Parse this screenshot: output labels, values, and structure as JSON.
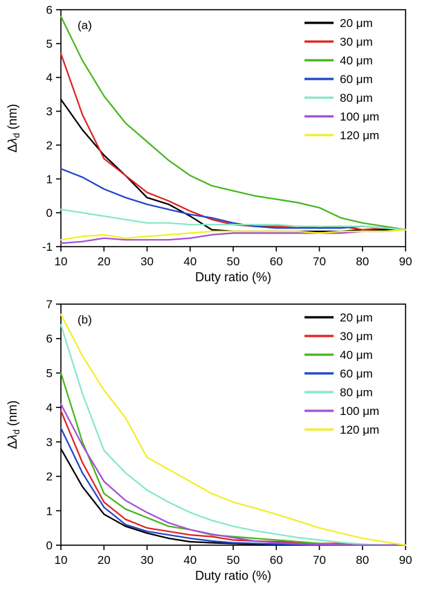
{
  "chart_data": [
    {
      "type": "line",
      "panel_label": "(a)",
      "xlabel": "Duty ratio (%)",
      "ylabel_prefix": "Δ",
      "ylabel_symbol": "λ",
      "ylabel_sub": "d",
      "ylabel_suffix": " (nm)",
      "xlim": [
        10,
        90
      ],
      "ylim": [
        -1,
        6
      ],
      "xticks": [
        10,
        20,
        30,
        40,
        50,
        60,
        70,
        80,
        90
      ],
      "yticks": [
        -1,
        0,
        1,
        2,
        3,
        4,
        5,
        6
      ],
      "grid": false,
      "legend_position": "top-right",
      "x": [
        10,
        15,
        20,
        25,
        30,
        35,
        40,
        45,
        50,
        55,
        60,
        65,
        70,
        75,
        80,
        85,
        90
      ],
      "series": [
        {
          "name": "20 μm",
          "color": "#000000",
          "values": [
            3.35,
            2.45,
            1.7,
            1.1,
            0.45,
            0.25,
            -0.1,
            -0.5,
            -0.55,
            -0.55,
            -0.55,
            -0.55,
            -0.55,
            -0.55,
            -0.5,
            -0.5,
            -0.5
          ]
        },
        {
          "name": "30 μm",
          "color": "#e02222",
          "values": [
            4.7,
            2.9,
            1.6,
            1.1,
            0.6,
            0.35,
            0.05,
            -0.2,
            -0.35,
            -0.4,
            -0.4,
            -0.4,
            -0.45,
            -0.4,
            -0.5,
            -0.45,
            -0.5
          ]
        },
        {
          "name": "40 μm",
          "color": "#46b61e",
          "values": [
            5.8,
            4.5,
            3.45,
            2.65,
            2.1,
            1.55,
            1.1,
            0.8,
            0.65,
            0.5,
            0.4,
            0.3,
            0.15,
            -0.15,
            -0.3,
            -0.4,
            -0.5
          ]
        },
        {
          "name": "60 μm",
          "color": "#1f45c8",
          "values": [
            1.3,
            1.05,
            0.7,
            0.45,
            0.25,
            0.1,
            -0.05,
            -0.15,
            -0.3,
            -0.4,
            -0.45,
            -0.45,
            -0.45,
            -0.45,
            -0.4,
            -0.45,
            -0.5
          ]
        },
        {
          "name": "80 μm",
          "color": "#86e8c6",
          "values": [
            0.1,
            0.0,
            -0.1,
            -0.2,
            -0.3,
            -0.3,
            -0.35,
            -0.35,
            -0.35,
            -0.35,
            -0.35,
            -0.4,
            -0.4,
            -0.4,
            -0.4,
            -0.45,
            -0.5
          ]
        },
        {
          "name": "100 μm",
          "color": "#a24fd8",
          "values": [
            -0.9,
            -0.85,
            -0.75,
            -0.8,
            -0.8,
            -0.8,
            -0.75,
            -0.65,
            -0.6,
            -0.6,
            -0.6,
            -0.6,
            -0.6,
            -0.6,
            -0.55,
            -0.55,
            -0.5
          ]
        },
        {
          "name": "120 μm",
          "color": "#f2ee2b",
          "values": [
            -0.8,
            -0.7,
            -0.65,
            -0.75,
            -0.7,
            -0.65,
            -0.6,
            -0.55,
            -0.55,
            -0.55,
            -0.55,
            -0.55,
            -0.6,
            -0.55,
            -0.55,
            -0.55,
            -0.5
          ]
        }
      ]
    },
    {
      "type": "line",
      "panel_label": "(b)",
      "xlabel": "Duty ratio (%)",
      "ylabel_prefix": "Δ",
      "ylabel_symbol": "λ",
      "ylabel_sub": "d",
      "ylabel_suffix": " (nm)",
      "xlim": [
        10,
        90
      ],
      "ylim": [
        0,
        7
      ],
      "xticks": [
        10,
        20,
        30,
        40,
        50,
        60,
        70,
        80,
        90
      ],
      "yticks": [
        0,
        1,
        2,
        3,
        4,
        5,
        6,
        7
      ],
      "grid": false,
      "legend_position": "top-right",
      "x": [
        10,
        15,
        20,
        25,
        30,
        35,
        40,
        45,
        50,
        55,
        60,
        65,
        70,
        75,
        80,
        85,
        90
      ],
      "series": [
        {
          "name": "20 μm",
          "color": "#000000",
          "values": [
            2.8,
            1.7,
            0.9,
            0.55,
            0.35,
            0.2,
            0.1,
            0.07,
            0.05,
            0.03,
            0.02,
            0.02,
            0.01,
            0.01,
            0.0,
            0.0,
            0.0
          ]
        },
        {
          "name": "30 μm",
          "color": "#e02222",
          "values": [
            3.9,
            2.4,
            1.25,
            0.75,
            0.5,
            0.4,
            0.3,
            0.25,
            0.15,
            0.12,
            0.1,
            0.08,
            0.05,
            0.05,
            0.02,
            0.0,
            0.0
          ]
        },
        {
          "name": "40 μm",
          "color": "#46b61e",
          "values": [
            5.0,
            3.0,
            1.5,
            1.05,
            0.8,
            0.55,
            0.45,
            0.3,
            0.25,
            0.2,
            0.15,
            0.1,
            0.05,
            0.02,
            0.0,
            0.0,
            0.0
          ]
        },
        {
          "name": "60 μm",
          "color": "#1f45c8",
          "values": [
            3.4,
            2.1,
            1.1,
            0.6,
            0.4,
            0.3,
            0.2,
            0.12,
            0.07,
            0.05,
            0.03,
            0.02,
            0.01,
            0.0,
            0.0,
            0.0,
            0.0
          ]
        },
        {
          "name": "80 μm",
          "color": "#86e8c6",
          "values": [
            6.4,
            4.4,
            2.75,
            2.1,
            1.6,
            1.25,
            0.95,
            0.72,
            0.55,
            0.42,
            0.32,
            0.22,
            0.15,
            0.08,
            0.03,
            0.0,
            0.0
          ]
        },
        {
          "name": "100 μm",
          "color": "#a24fd8",
          "values": [
            4.1,
            2.9,
            1.85,
            1.3,
            0.95,
            0.65,
            0.45,
            0.32,
            0.22,
            0.12,
            0.07,
            0.04,
            0.02,
            0.01,
            0.0,
            0.0,
            0.0
          ]
        },
        {
          "name": "120 μm",
          "color": "#f2ee2b",
          "values": [
            6.7,
            5.5,
            4.5,
            3.7,
            2.55,
            2.2,
            1.85,
            1.5,
            1.25,
            1.08,
            0.9,
            0.7,
            0.5,
            0.35,
            0.2,
            0.1,
            0.0
          ]
        }
      ]
    }
  ]
}
